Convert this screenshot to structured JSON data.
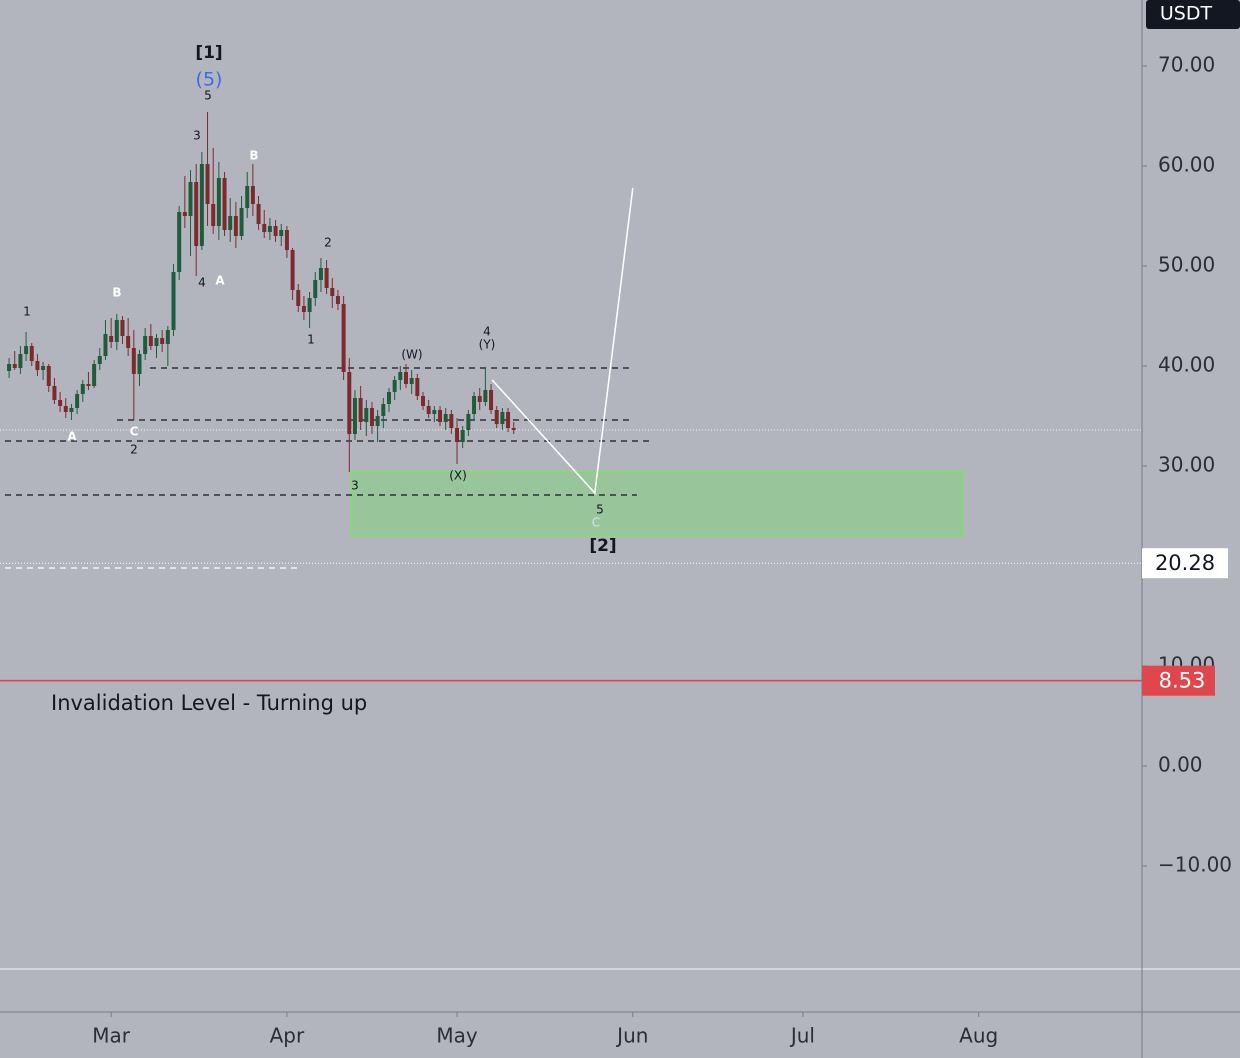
{
  "chart_data": {
    "type": "candlestick",
    "currency": "USDT",
    "xlim": [
      -0.6,
      200.8
    ],
    "ylim": [
      -24.6,
      76.6
    ],
    "xticks": [
      {
        "value": 19,
        "label": "Mar"
      },
      {
        "value": 50,
        "label": "Apr"
      },
      {
        "value": 80,
        "label": "May"
      },
      {
        "value": 111,
        "label": "Jun"
      },
      {
        "value": 141,
        "label": "Jul"
      },
      {
        "value": 172,
        "label": "Aug"
      }
    ],
    "yticks": [
      {
        "value": 70,
        "label": "70.00"
      },
      {
        "value": 60,
        "label": "60.00"
      },
      {
        "value": 50,
        "label": "50.00"
      },
      {
        "value": 40,
        "label": "40.00"
      },
      {
        "value": 30,
        "label": "30.00"
      },
      {
        "value": 10,
        "label": "10.00"
      },
      {
        "value": 0,
        "label": "0.00"
      },
      {
        "value": -10,
        "label": "−10.00"
      }
    ],
    "up_color": "#1f5c3c",
    "down_color": "#7d2a2e",
    "x": [
      1,
      2,
      3,
      4,
      5,
      6,
      7,
      8,
      9,
      10,
      11,
      12,
      13,
      14,
      15,
      16,
      17,
      18,
      19,
      20,
      21,
      22,
      23,
      24,
      25,
      26,
      27,
      28,
      29,
      30,
      31,
      32,
      33,
      34,
      35,
      36,
      37,
      38,
      39,
      40,
      41,
      42,
      43,
      44,
      45,
      46,
      47,
      48,
      49,
      50,
      51,
      52,
      53,
      54,
      55,
      56,
      57,
      58,
      59,
      60,
      61,
      62,
      63,
      64,
      65,
      66,
      67,
      68,
      69,
      70,
      71,
      72,
      73,
      74,
      75,
      76,
      77,
      78,
      79,
      80,
      81,
      82,
      83,
      84,
      85,
      86,
      87,
      88,
      89,
      90
    ],
    "candles": [
      [
        39.5,
        40.8,
        38.8,
        40.2
      ],
      [
        40.2,
        41.5,
        39.6,
        39.8
      ],
      [
        39.8,
        42.0,
        39.2,
        41.2
      ],
      [
        41.2,
        43.4,
        40.5,
        42.0
      ],
      [
        42.0,
        42.3,
        40.0,
        40.5
      ],
      [
        40.5,
        41.2,
        39.0,
        39.6
      ],
      [
        39.6,
        40.4,
        38.6,
        40.0
      ],
      [
        40.0,
        40.2,
        37.4,
        38.0
      ],
      [
        38.0,
        38.8,
        36.2,
        36.6
      ],
      [
        36.6,
        37.4,
        35.4,
        36.0
      ],
      [
        36.0,
        36.8,
        34.8,
        35.4
      ],
      [
        35.4,
        36.2,
        34.6,
        35.8
      ],
      [
        35.8,
        37.6,
        35.2,
        37.2
      ],
      [
        37.2,
        38.6,
        36.4,
        38.2
      ],
      [
        38.2,
        39.4,
        37.6,
        38.0
      ],
      [
        38.0,
        40.6,
        37.8,
        40.2
      ],
      [
        40.2,
        41.8,
        39.6,
        41.0
      ],
      [
        41.0,
        44.6,
        40.6,
        43.2
      ],
      [
        43.0,
        44.8,
        41.8,
        42.4
      ],
      [
        42.4,
        45.2,
        41.6,
        44.6
      ],
      [
        44.6,
        45.0,
        42.2,
        43.0
      ],
      [
        43.0,
        44.8,
        41.0,
        41.8
      ],
      [
        41.8,
        43.6,
        34.6,
        39.2
      ],
      [
        39.2,
        41.6,
        38.0,
        41.2
      ],
      [
        41.2,
        43.8,
        40.6,
        43.0
      ],
      [
        43.0,
        44.2,
        41.6,
        42.0
      ],
      [
        42.0,
        43.2,
        40.8,
        42.8
      ],
      [
        42.8,
        43.6,
        41.4,
        42.2
      ],
      [
        42.2,
        44.0,
        40.0,
        43.6
      ],
      [
        43.6,
        50.2,
        43.0,
        49.4
      ],
      [
        49.4,
        56.0,
        48.6,
        55.4
      ],
      [
        55.4,
        59.0,
        53.8,
        55.0
      ],
      [
        55.0,
        59.6,
        51.0,
        58.4
      ],
      [
        58.4,
        60.2,
        49.0,
        52.0
      ],
      [
        52.0,
        61.4,
        51.6,
        60.2
      ],
      [
        60.2,
        65.4,
        54.0,
        56.2
      ],
      [
        56.2,
        61.8,
        53.2,
        54.0
      ],
      [
        54.0,
        60.4,
        52.6,
        58.8
      ],
      [
        58.8,
        59.4,
        53.0,
        53.6
      ],
      [
        53.6,
        56.8,
        52.4,
        55.0
      ],
      [
        55.0,
        56.4,
        51.8,
        53.0
      ],
      [
        53.0,
        57.0,
        52.6,
        55.8
      ],
      [
        55.8,
        59.4,
        54.8,
        58.0
      ],
      [
        58.0,
        60.2,
        55.0,
        56.2
      ],
      [
        56.2,
        57.0,
        53.6,
        54.2
      ],
      [
        54.2,
        55.6,
        52.8,
        53.4
      ],
      [
        53.4,
        54.8,
        52.6,
        54.0
      ],
      [
        54.0,
        54.6,
        52.4,
        53.0
      ],
      [
        53.0,
        54.2,
        52.0,
        53.6
      ],
      [
        53.6,
        54.0,
        50.8,
        51.6
      ],
      [
        51.6,
        51.8,
        46.6,
        47.6
      ],
      [
        47.6,
        48.2,
        45.4,
        46.0
      ],
      [
        46.0,
        47.0,
        44.6,
        45.4
      ],
      [
        45.4,
        47.4,
        43.8,
        46.8
      ],
      [
        46.8,
        49.4,
        46.0,
        48.6
      ],
      [
        48.6,
        50.8,
        47.4,
        49.8
      ],
      [
        49.8,
        50.6,
        47.2,
        47.8
      ],
      [
        47.8,
        48.8,
        45.8,
        47.0
      ],
      [
        47.0,
        47.6,
        45.6,
        46.2
      ],
      [
        46.2,
        47.0,
        38.6,
        39.4
      ],
      [
        39.4,
        40.8,
        29.4,
        33.2
      ],
      [
        33.2,
        37.6,
        32.6,
        36.8
      ],
      [
        36.8,
        38.0,
        33.6,
        34.4
      ],
      [
        34.4,
        36.6,
        33.0,
        35.8
      ],
      [
        35.8,
        36.4,
        33.2,
        34.0
      ],
      [
        34.0,
        35.6,
        32.4,
        35.0
      ],
      [
        35.0,
        36.8,
        33.8,
        36.2
      ],
      [
        36.2,
        37.8,
        35.4,
        37.4
      ],
      [
        37.4,
        39.0,
        36.6,
        38.6
      ],
      [
        38.6,
        40.0,
        37.6,
        39.4
      ],
      [
        39.4,
        40.2,
        37.8,
        38.2
      ],
      [
        38.2,
        39.6,
        37.2,
        38.8
      ],
      [
        38.8,
        39.2,
        36.6,
        37.0
      ],
      [
        37.0,
        37.4,
        35.6,
        36.0
      ],
      [
        36.0,
        36.6,
        34.8,
        35.2
      ],
      [
        35.2,
        36.0,
        34.4,
        35.6
      ],
      [
        35.6,
        36.0,
        34.0,
        34.4
      ],
      [
        34.4,
        35.8,
        33.6,
        35.2
      ],
      [
        35.2,
        35.6,
        33.2,
        33.8
      ],
      [
        33.8,
        34.8,
        30.2,
        32.4
      ],
      [
        32.4,
        34.0,
        31.8,
        33.6
      ],
      [
        33.6,
        35.6,
        33.0,
        35.2
      ],
      [
        35.2,
        37.4,
        34.6,
        37.0
      ],
      [
        37.0,
        37.8,
        35.6,
        36.4
      ],
      [
        36.4,
        39.8,
        36.0,
        37.6
      ],
      [
        37.6,
        38.2,
        35.2,
        35.6
      ],
      [
        35.6,
        36.0,
        33.8,
        34.2
      ],
      [
        34.2,
        35.8,
        33.6,
        35.4
      ],
      [
        35.4,
        35.8,
        33.4,
        33.8
      ],
      [
        33.8,
        34.4,
        33.2,
        33.6
      ]
    ],
    "levels": [
      39.8,
      34.6,
      32.5,
      27.1,
      19.8
    ],
    "current_price": 33.6,
    "zone": [
      23.0,
      29.5
    ],
    "marked_levels": [
      {
        "value": 20.28,
        "color": "#ffffff"
      },
      {
        "value": 8.53,
        "color": "#e0474c"
      }
    ],
    "lower_line": -20.3,
    "projection": {
      "x": [
        86.2,
        104.3,
        111
      ],
      "values": [
        38.6,
        27.3,
        57.8
      ]
    },
    "invalidation_text": "Invalidation Level - Turning up",
    "annotations": [
      "[1]",
      "(5)",
      "5",
      "3",
      "B",
      "4",
      "A",
      "2",
      "1",
      "1",
      "B",
      "A",
      "C",
      "2",
      "(W)",
      "4",
      "(Y)",
      "(X)",
      "3",
      "5",
      "C",
      "[2]"
    ]
  }
}
